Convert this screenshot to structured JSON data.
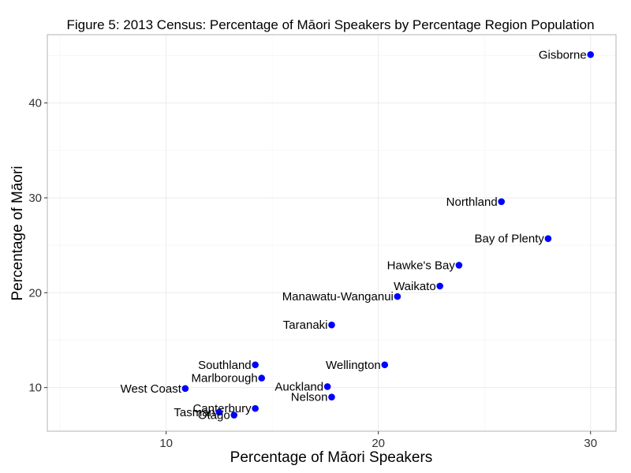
{
  "chart_data": {
    "type": "scatter",
    "title": "Figure 5: 2013 Census: Percentage of Māori Speakers by Percentage Region Population",
    "xlabel": "Percentage of Māori Speakers",
    "ylabel": "Percentage of Māori",
    "xlim": [
      4.4,
      31.2
    ],
    "ylim": [
      5.4,
      47.2
    ],
    "xticks": [
      10,
      20,
      30
    ],
    "yticks": [
      10,
      20,
      30,
      40
    ],
    "grid": true,
    "point_color": "#0000ff",
    "points": [
      {
        "label": "Gisborne",
        "x": 30.0,
        "y": 45.1
      },
      {
        "label": "Northland",
        "x": 25.8,
        "y": 29.6
      },
      {
        "label": "Bay of Plenty",
        "x": 28.0,
        "y": 25.7
      },
      {
        "label": "Hawke's Bay",
        "x": 23.8,
        "y": 22.9
      },
      {
        "label": "Waikato",
        "x": 22.9,
        "y": 20.7
      },
      {
        "label": "Manawatu-Wanganui",
        "x": 20.9,
        "y": 19.6
      },
      {
        "label": "Taranaki",
        "x": 17.8,
        "y": 16.6
      },
      {
        "label": "Wellington",
        "x": 20.3,
        "y": 12.4
      },
      {
        "label": "Southland",
        "x": 14.2,
        "y": 12.4
      },
      {
        "label": "Marlborough",
        "x": 14.5,
        "y": 11.0
      },
      {
        "label": "Auckland",
        "x": 17.6,
        "y": 10.1
      },
      {
        "label": "West Coast",
        "x": 10.9,
        "y": 9.9
      },
      {
        "label": "Nelson",
        "x": 17.8,
        "y": 9.0
      },
      {
        "label": "Canterbury",
        "x": 14.2,
        "y": 7.8
      },
      {
        "label": "Tasman",
        "x": 12.5,
        "y": 7.4
      },
      {
        "label": "Otago",
        "x": 13.2,
        "y": 7.1
      }
    ]
  }
}
